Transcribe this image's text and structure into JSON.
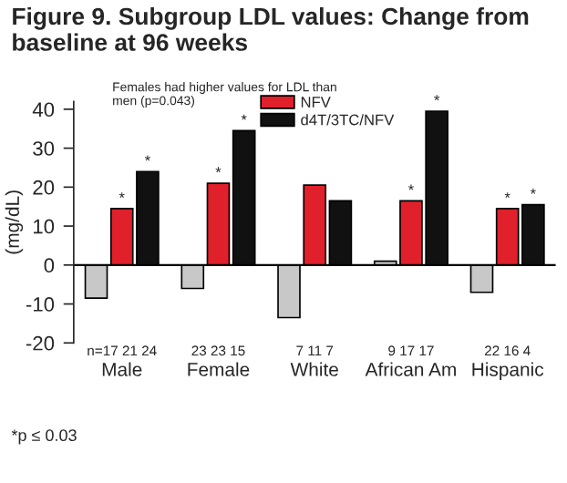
{
  "chart_data": {
    "type": "bar",
    "title": "Figure 9. Subgroup LDL values: Change from\nbaseline at 96 weeks",
    "ylabel": "(mg/dL)",
    "categories": [
      "Male",
      "Female",
      "White",
      "African Am",
      "Hispanic"
    ],
    "series": [
      {
        "color": "#c8c8c8",
        "values": [
          -8.5,
          -6,
          -13.5,
          1,
          -7
        ]
      },
      {
        "name": "NFV",
        "color": "#e0202a",
        "values": [
          14.5,
          21,
          20.5,
          16.5,
          14.5
        ],
        "value_labels": [
          "*",
          "*",
          null,
          "*",
          "*"
        ]
      },
      {
        "name": "d4T/3TC/NFV",
        "color": "#111111",
        "values": [
          24,
          34.5,
          16.5,
          39.5,
          15.5
        ],
        "value_labels": [
          "*",
          "*",
          null,
          "*",
          "*"
        ]
      }
    ],
    "ylim": [
      -20,
      42
    ],
    "yticks": [
      -20,
      -10,
      0,
      10,
      20,
      30,
      40
    ],
    "grid": false,
    "legend": "top",
    "ref_lines": [
      {
        "axis": "y",
        "value": 0,
        "color": "#000000"
      }
    ],
    "annotations": [
      "Females had higher values for LDL than\nmen (p=0.043)",
      "n=17 21 24",
      "23 23 15",
      "7 11 7",
      "9 17 17",
      "22 16 4",
      "*p ≤ 0.03"
    ]
  }
}
